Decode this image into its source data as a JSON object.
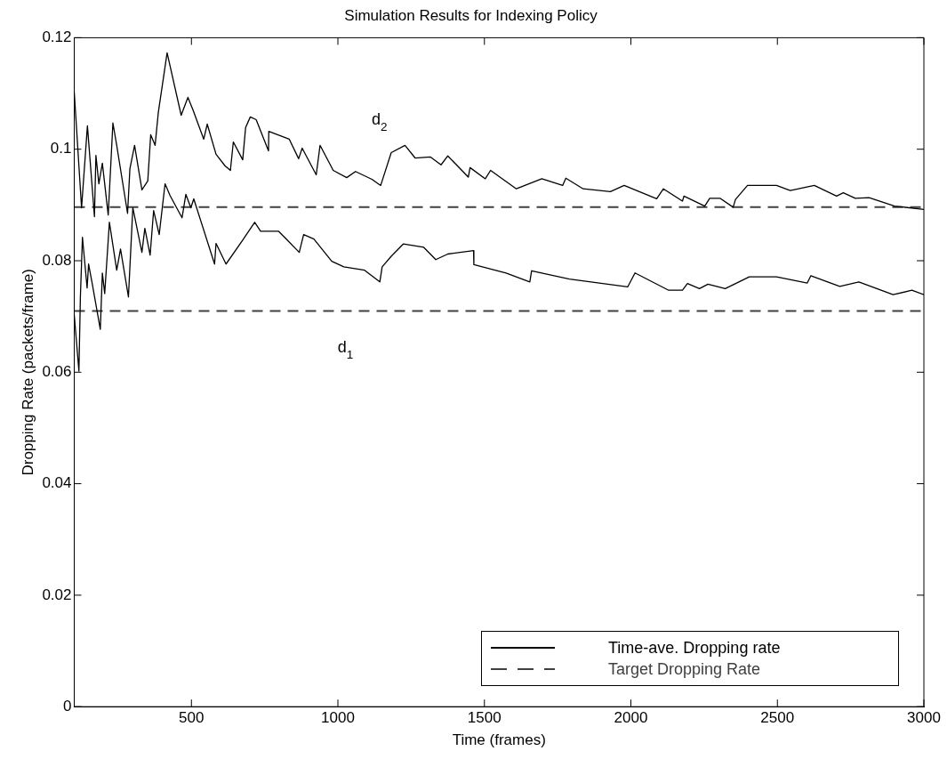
{
  "chart_data": {
    "type": "line",
    "title": "Simulation Results for Indexing Policy",
    "xlabel": "Time (frames)",
    "ylabel": "Dropping Rate (packets/frame)",
    "xlim": [
      100,
      3000
    ],
    "xticks": [
      500,
      1000,
      1500,
      2000,
      2500,
      3000
    ],
    "ylim": [
      0,
      0.12
    ],
    "yticks": [
      0,
      0.02,
      0.04,
      0.06,
      0.08,
      0.1,
      0.12
    ],
    "grid": false,
    "legend": "bottom right",
    "marker": "none",
    "annotations": [
      "d$_{2}$",
      "d$_{1}$"
    ],
    "series": [
      {
        "name": "Time-ave. Dropping rate",
        "color": "#000000",
        "line_style": "solid",
        "x": [
          100,
          116,
          121,
          128,
          144,
          149,
          162,
          189,
          196,
          204,
          220,
          245,
          258,
          285,
          300,
          331,
          341,
          359,
          371,
          390,
          410,
          427,
          468,
          481,
          498,
          508,
          579,
          584,
          618,
          675,
          716,
          736,
          797,
          827,
          868,
          883,
          918,
          979,
          1020,
          1091,
          1143,
          1151,
          1182,
          1223,
          1293,
          1334,
          1375,
          1463,
          1464,
          1574,
          1655,
          1661,
          1790,
          1989,
          2014,
          2129,
          2176,
          2193,
          2234,
          2263,
          2322,
          2404,
          2497,
          2602,
          2614,
          2713,
          2778,
          2895,
          2959,
          3000
        ],
        "values": [
          0.0703,
          0.0602,
          0.0735,
          0.0842,
          0.0751,
          0.0794,
          0.0757,
          0.0677,
          0.0778,
          0.0741,
          0.0869,
          0.0783,
          0.0821,
          0.0735,
          0.0895,
          0.0815,
          0.0858,
          0.081,
          0.089,
          0.0847,
          0.0938,
          0.0917,
          0.0877,
          0.0919,
          0.0895,
          0.0911,
          0.0794,
          0.0831,
          0.0794,
          0.0837,
          0.0869,
          0.0853,
          0.0853,
          0.0837,
          0.0815,
          0.0847,
          0.0839,
          0.0799,
          0.0789,
          0.0783,
          0.0762,
          0.0789,
          0.0808,
          0.083,
          0.0824,
          0.0802,
          0.0812,
          0.0818,
          0.0793,
          0.0778,
          0.0762,
          0.0782,
          0.0767,
          0.0753,
          0.0778,
          0.0747,
          0.0747,
          0.0759,
          0.075,
          0.0758,
          0.075,
          0.0771,
          0.0771,
          0.076,
          0.0773,
          0.0754,
          0.0762,
          0.0739,
          0.0747,
          0.0739
        ]
      },
      {
        "color": "#000000",
        "line_style": "solid",
        "x": [
          100,
          125,
          145,
          169,
          174,
          184,
          196,
          216,
          232,
          245,
          282,
          290,
          306,
          331,
          351,
          361,
          376,
          387,
          417,
          465,
          488,
          505,
          542,
          554,
          584,
          615,
          633,
          643,
          675,
          685,
          701,
          721,
          763,
          764,
          834,
          866,
          878,
          926,
          939,
          984,
          1030,
          1060,
          1116,
          1146,
          1182,
          1229,
          1264,
          1316,
          1352,
          1375,
          1445,
          1451,
          1503,
          1521,
          1609,
          1696,
          1767,
          1778,
          1837,
          1930,
          1977,
          2088,
          2111,
          2176,
          2181,
          2252,
          2269,
          2304,
          2349,
          2357,
          2398,
          2497,
          2544,
          2626,
          2702,
          2725,
          2766,
          2813,
          2900,
          3000
        ],
        "values": [
          0.1103,
          0.0895,
          0.1042,
          0.0879,
          0.0989,
          0.0938,
          0.0975,
          0.0882,
          0.1047,
          0.1007,
          0.0885,
          0.0965,
          0.1007,
          0.0927,
          0.0943,
          0.1026,
          0.1007,
          0.1066,
          0.1173,
          0.1061,
          0.1093,
          0.1071,
          0.1018,
          0.1045,
          0.0991,
          0.097,
          0.0962,
          0.1013,
          0.0981,
          0.1039,
          0.1058,
          0.1053,
          0.0997,
          0.1032,
          0.1018,
          0.0983,
          0.1002,
          0.0954,
          0.1007,
          0.0962,
          0.0949,
          0.096,
          0.0946,
          0.0935,
          0.0994,
          0.1007,
          0.0984,
          0.0986,
          0.0972,
          0.0988,
          0.095,
          0.0967,
          0.0947,
          0.0962,
          0.0929,
          0.0947,
          0.0935,
          0.0948,
          0.0929,
          0.0924,
          0.0935,
          0.0911,
          0.0929,
          0.0907,
          0.0916,
          0.0898,
          0.0912,
          0.0912,
          0.0896,
          0.091,
          0.0935,
          0.0935,
          0.0926,
          0.0935,
          0.0916,
          0.0922,
          0.0912,
          0.0913,
          0.0898,
          0.0892
        ]
      },
      {
        "name": "Target Dropping Rate",
        "color": "#404040",
        "line_style": "dashed",
        "x": [
          100,
          3000
        ],
        "values": [
          0.0896,
          0.0896
        ]
      },
      {
        "color": "#404040",
        "line_style": "dashed",
        "x": [
          100,
          3000
        ],
        "values": [
          0.071,
          0.071
        ]
      }
    ]
  }
}
